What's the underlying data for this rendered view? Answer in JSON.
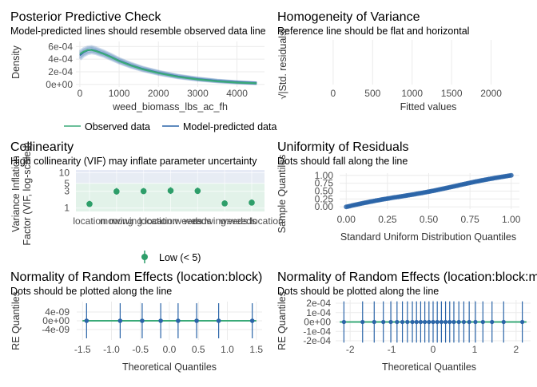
{
  "colors": {
    "observed": "#3aaa78",
    "predicted": "#2a64a8",
    "vif_low": "#2e9e6a",
    "points": "#2a64a8",
    "refline": "#3aaa78"
  },
  "chart_data": [
    {
      "id": "ppc",
      "type": "line",
      "title": "Posterior Predictive Check",
      "subtitle": "Model-predicted lines should resemble observed data line",
      "xlabel": "weed_biomass_lbs_ac_fh",
      "ylabel": "Density",
      "xlim": [
        -100,
        4700
      ],
      "ylim": [
        -4e-05,
        0.00068
      ],
      "x_ticks": [
        0,
        1000,
        2000,
        3000,
        4000
      ],
      "x_tick_labels": [
        "0",
        "1000",
        "2000",
        "3000",
        "4000"
      ],
      "y_ticks": [
        0,
        0.0002,
        0.0004,
        0.0006
      ],
      "y_tick_labels": [
        "0e+00",
        "2e-04",
        "4e-04",
        "6e-04"
      ],
      "legend": [
        "Observed data",
        "Model-predicted data"
      ],
      "legend_position": "bottom",
      "series": [
        {
          "name": "Observed data",
          "x": [
            0,
            100,
            200,
            300,
            400,
            600,
            800,
            1000,
            1300,
            1600,
            2000,
            2500,
            3000,
            3500,
            4000,
            4500
          ],
          "values": [
            0.00048,
            0.00052,
            0.000545,
            0.000545,
            0.00053,
            0.000485,
            0.00043,
            0.00037,
            0.0003,
            0.00024,
            0.00018,
            0.00012,
            8e-05,
            5e-05,
            3e-05,
            2e-05
          ]
        },
        {
          "name": "Model-predicted data",
          "x": [
            0,
            100,
            200,
            300,
            400,
            600,
            800,
            1000,
            1300,
            1600,
            2000,
            2500,
            3000,
            3500,
            4000,
            4500
          ],
          "values": [
            0.00046,
            0.00051,
            0.00054,
            0.00055,
            0.000535,
            0.00049,
            0.000435,
            0.000375,
            0.000305,
            0.000245,
            0.000185,
            0.000125,
            8.5e-05,
            5.5e-05,
            3.5e-05,
            2e-05
          ]
        }
      ]
    },
    {
      "id": "hov",
      "type": "scatter",
      "title": "Homogeneity of Variance",
      "subtitle": "Reference line should be flat and horizontal",
      "xlabel": "Fitted values",
      "ylabel": "√|Std. residuals|",
      "xlim": [
        -100,
        2500
      ],
      "x_ticks": [
        0,
        500,
        1000,
        1500,
        2000
      ],
      "x_tick_labels": [
        "0",
        "500",
        "1000",
        "1500",
        "2000"
      ],
      "series": []
    },
    {
      "id": "vif",
      "type": "scatter",
      "title": "Collinearity",
      "subtitle": "High collinearity (VIF) may inflate parameter uncertainty",
      "xlabel": "",
      "ylabel": "Variance Inflation\nFactor (VIF, log-scaled)",
      "ylim": [
        0.8,
        12
      ],
      "y_ticks": [
        1,
        3,
        5,
        10
      ],
      "y_tick_labels": [
        "1",
        "3",
        "5",
        "10"
      ],
      "categories": [
        "location",
        "mowing",
        "mowing:location",
        "location:weeds",
        "weeds",
        "mowing:weeds",
        "weeds:location"
      ],
      "x_tick_labels": [
        "location",
        "mowing",
        "mowing:location",
        "location:weeds",
        "weeds",
        "mowing:weeds",
        "weeds:location"
      ],
      "values": [
        1.3,
        2.95,
        3.0,
        3.1,
        3.05,
        1.35,
        1.42
      ],
      "ci_low": [
        1.1,
        2.4,
        2.5,
        2.5,
        2.5,
        1.15,
        1.2
      ],
      "ci_high": [
        1.6,
        3.7,
        3.7,
        3.9,
        3.8,
        1.65,
        1.75
      ],
      "legend": [
        "Low (< 5)"
      ],
      "legend_position": "bottom"
    },
    {
      "id": "qq",
      "type": "scatter",
      "title": "Uniformity of Residuals",
      "subtitle": "Dots should fall along the line",
      "xlabel": "Standard Uniform Distribution Quantiles",
      "ylabel": "Sample Quantiles",
      "xlim": [
        -0.04,
        1.04
      ],
      "ylim": [
        -0.07,
        1.07
      ],
      "x_ticks": [
        0,
        0.25,
        0.5,
        0.75,
        1
      ],
      "x_tick_labels": [
        "0.00",
        "0.25",
        "0.50",
        "0.75",
        "1.00"
      ],
      "y_ticks": [
        0,
        0.25,
        0.5,
        0.75,
        1
      ],
      "y_tick_labels": [
        "0.00",
        "0.25",
        "0.50",
        "0.75",
        "1.00"
      ]
    },
    {
      "id": "re1",
      "type": "scatter",
      "title": "Normality of Random Effects (location:block)",
      "subtitle": "Dots should be plotted along the line",
      "xlabel": "Theoretical Quantiles",
      "ylabel": "RE Quantiles",
      "xlim": [
        -1.6,
        1.6
      ],
      "ylim": [
        -8e-09,
        8e-09
      ],
      "x_ticks": [
        -1.5,
        -1,
        -0.5,
        0,
        0.5,
        1,
        1.5
      ],
      "x_tick_labels": [
        "-1.5",
        "-1.0",
        "-0.5",
        "0.0",
        "0.5",
        "1.0",
        "1.5"
      ],
      "y_ticks": [
        -4e-09,
        0,
        4e-09
      ],
      "y_tick_labels": [
        "-4e-09",
        "0e+00",
        "4e-09"
      ],
      "x": [
        -1.43,
        -0.85,
        -0.47,
        -0.15,
        0.15,
        0.47,
        0.85,
        1.43
      ],
      "values": [
        0,
        0,
        0,
        0,
        0,
        0,
        0,
        0
      ],
      "ci_low": -8e-09,
      "ci_high": 8e-09
    },
    {
      "id": "re2",
      "type": "scatter",
      "title": "Normality of Random Effects (location:block:m",
      "subtitle": "Dots should be plotted along the line",
      "xlabel": "Theoretical Quantiles",
      "ylabel": "RE Quantiles",
      "xlim": [
        -2.35,
        2.35
      ],
      "ylim": [
        -0.00022,
        0.00022
      ],
      "x_ticks": [
        -2,
        -1,
        0,
        1,
        2
      ],
      "x_tick_labels": [
        "-2",
        "-1",
        "0",
        "1",
        "2"
      ],
      "y_ticks": [
        -0.0002,
        -0.0001,
        0,
        0.0001,
        0.0002
      ],
      "y_tick_labels": [
        "-2e-04",
        "-1e-04",
        "0e+00",
        "1e-04",
        "2e-04"
      ],
      "x": [
        -2.15,
        -1.7,
        -1.42,
        -1.2,
        -1.02,
        -0.87,
        -0.74,
        -0.62,
        -0.5,
        -0.4,
        -0.3,
        -0.2,
        -0.1,
        0,
        0.1,
        0.2,
        0.3,
        0.4,
        0.5,
        0.62,
        0.74,
        0.87,
        1.02,
        1.2,
        1.42,
        1.7,
        2.15
      ],
      "values": [
        0,
        0,
        0,
        0,
        0,
        0,
        0,
        0,
        0,
        0,
        0,
        0,
        0,
        0,
        0,
        0,
        0,
        0,
        0,
        0,
        0,
        0,
        0,
        0,
        0,
        0,
        0
      ],
      "ci_low": -0.00022,
      "ci_high": 0.00022
    }
  ]
}
